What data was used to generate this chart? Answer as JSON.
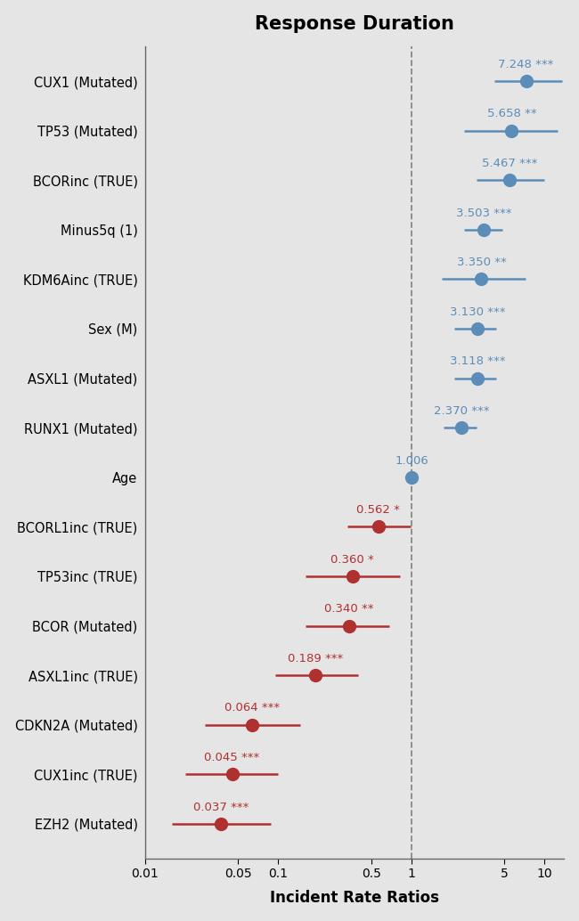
{
  "title": "Response Duration",
  "xlabel": "Incident Rate Ratios",
  "background_color": "#e5e5e5",
  "xlim_log": [
    0.01,
    15
  ],
  "xticks": [
    0.01,
    0.05,
    0.1,
    0.5,
    1,
    5,
    10
  ],
  "xtick_labels": [
    "0.01",
    "0.05",
    "0.1",
    "0.5",
    "1",
    "5",
    "10"
  ],
  "vline_x": 1.0,
  "categories": [
    "CUX1 (Mutated)",
    "TP53 (Mutated)",
    "BCORinc (TRUE)",
    "Minus5q (1)",
    "KDM6Ainc (TRUE)",
    "Sex (M)",
    "ASXL1 (Mutated)",
    "RUNX1 (Mutated)",
    "Age",
    "BCORL1inc (TRUE)",
    "TP53inc (TRUE)",
    "BCOR (Mutated)",
    "ASXL1inc (TRUE)",
    "CDKN2A (Mutated)",
    "CUX1inc (TRUE)",
    "EZH2 (Mutated)"
  ],
  "irr": [
    7.248,
    5.658,
    5.467,
    3.503,
    3.35,
    3.13,
    3.118,
    2.37,
    1.006,
    0.562,
    0.36,
    0.34,
    0.189,
    0.064,
    0.045,
    0.037
  ],
  "ci_low": [
    4.2,
    2.5,
    3.1,
    2.5,
    1.7,
    2.1,
    2.1,
    1.75,
    0.96,
    0.33,
    0.16,
    0.16,
    0.095,
    0.028,
    0.02,
    0.016
  ],
  "ci_high": [
    13.5,
    12.5,
    10.0,
    4.8,
    7.2,
    4.3,
    4.3,
    3.1,
    1.06,
    0.98,
    0.82,
    0.68,
    0.4,
    0.145,
    0.1,
    0.088
  ],
  "significance": [
    "***",
    "**",
    "***",
    "***",
    "**",
    "***",
    "***",
    "***",
    "",
    "*",
    "*",
    "**",
    "***",
    "***",
    "***",
    "***"
  ],
  "colors": [
    "#5b8db8",
    "#5b8db8",
    "#5b8db8",
    "#5b8db8",
    "#5b8db8",
    "#5b8db8",
    "#5b8db8",
    "#5b8db8",
    "#5b8db8",
    "#b03030",
    "#b03030",
    "#b03030",
    "#b03030",
    "#b03030",
    "#b03030",
    "#b03030"
  ],
  "title_fontsize": 15,
  "label_fontsize": 10.5,
  "tick_fontsize": 10,
  "value_fontsize": 9.5
}
